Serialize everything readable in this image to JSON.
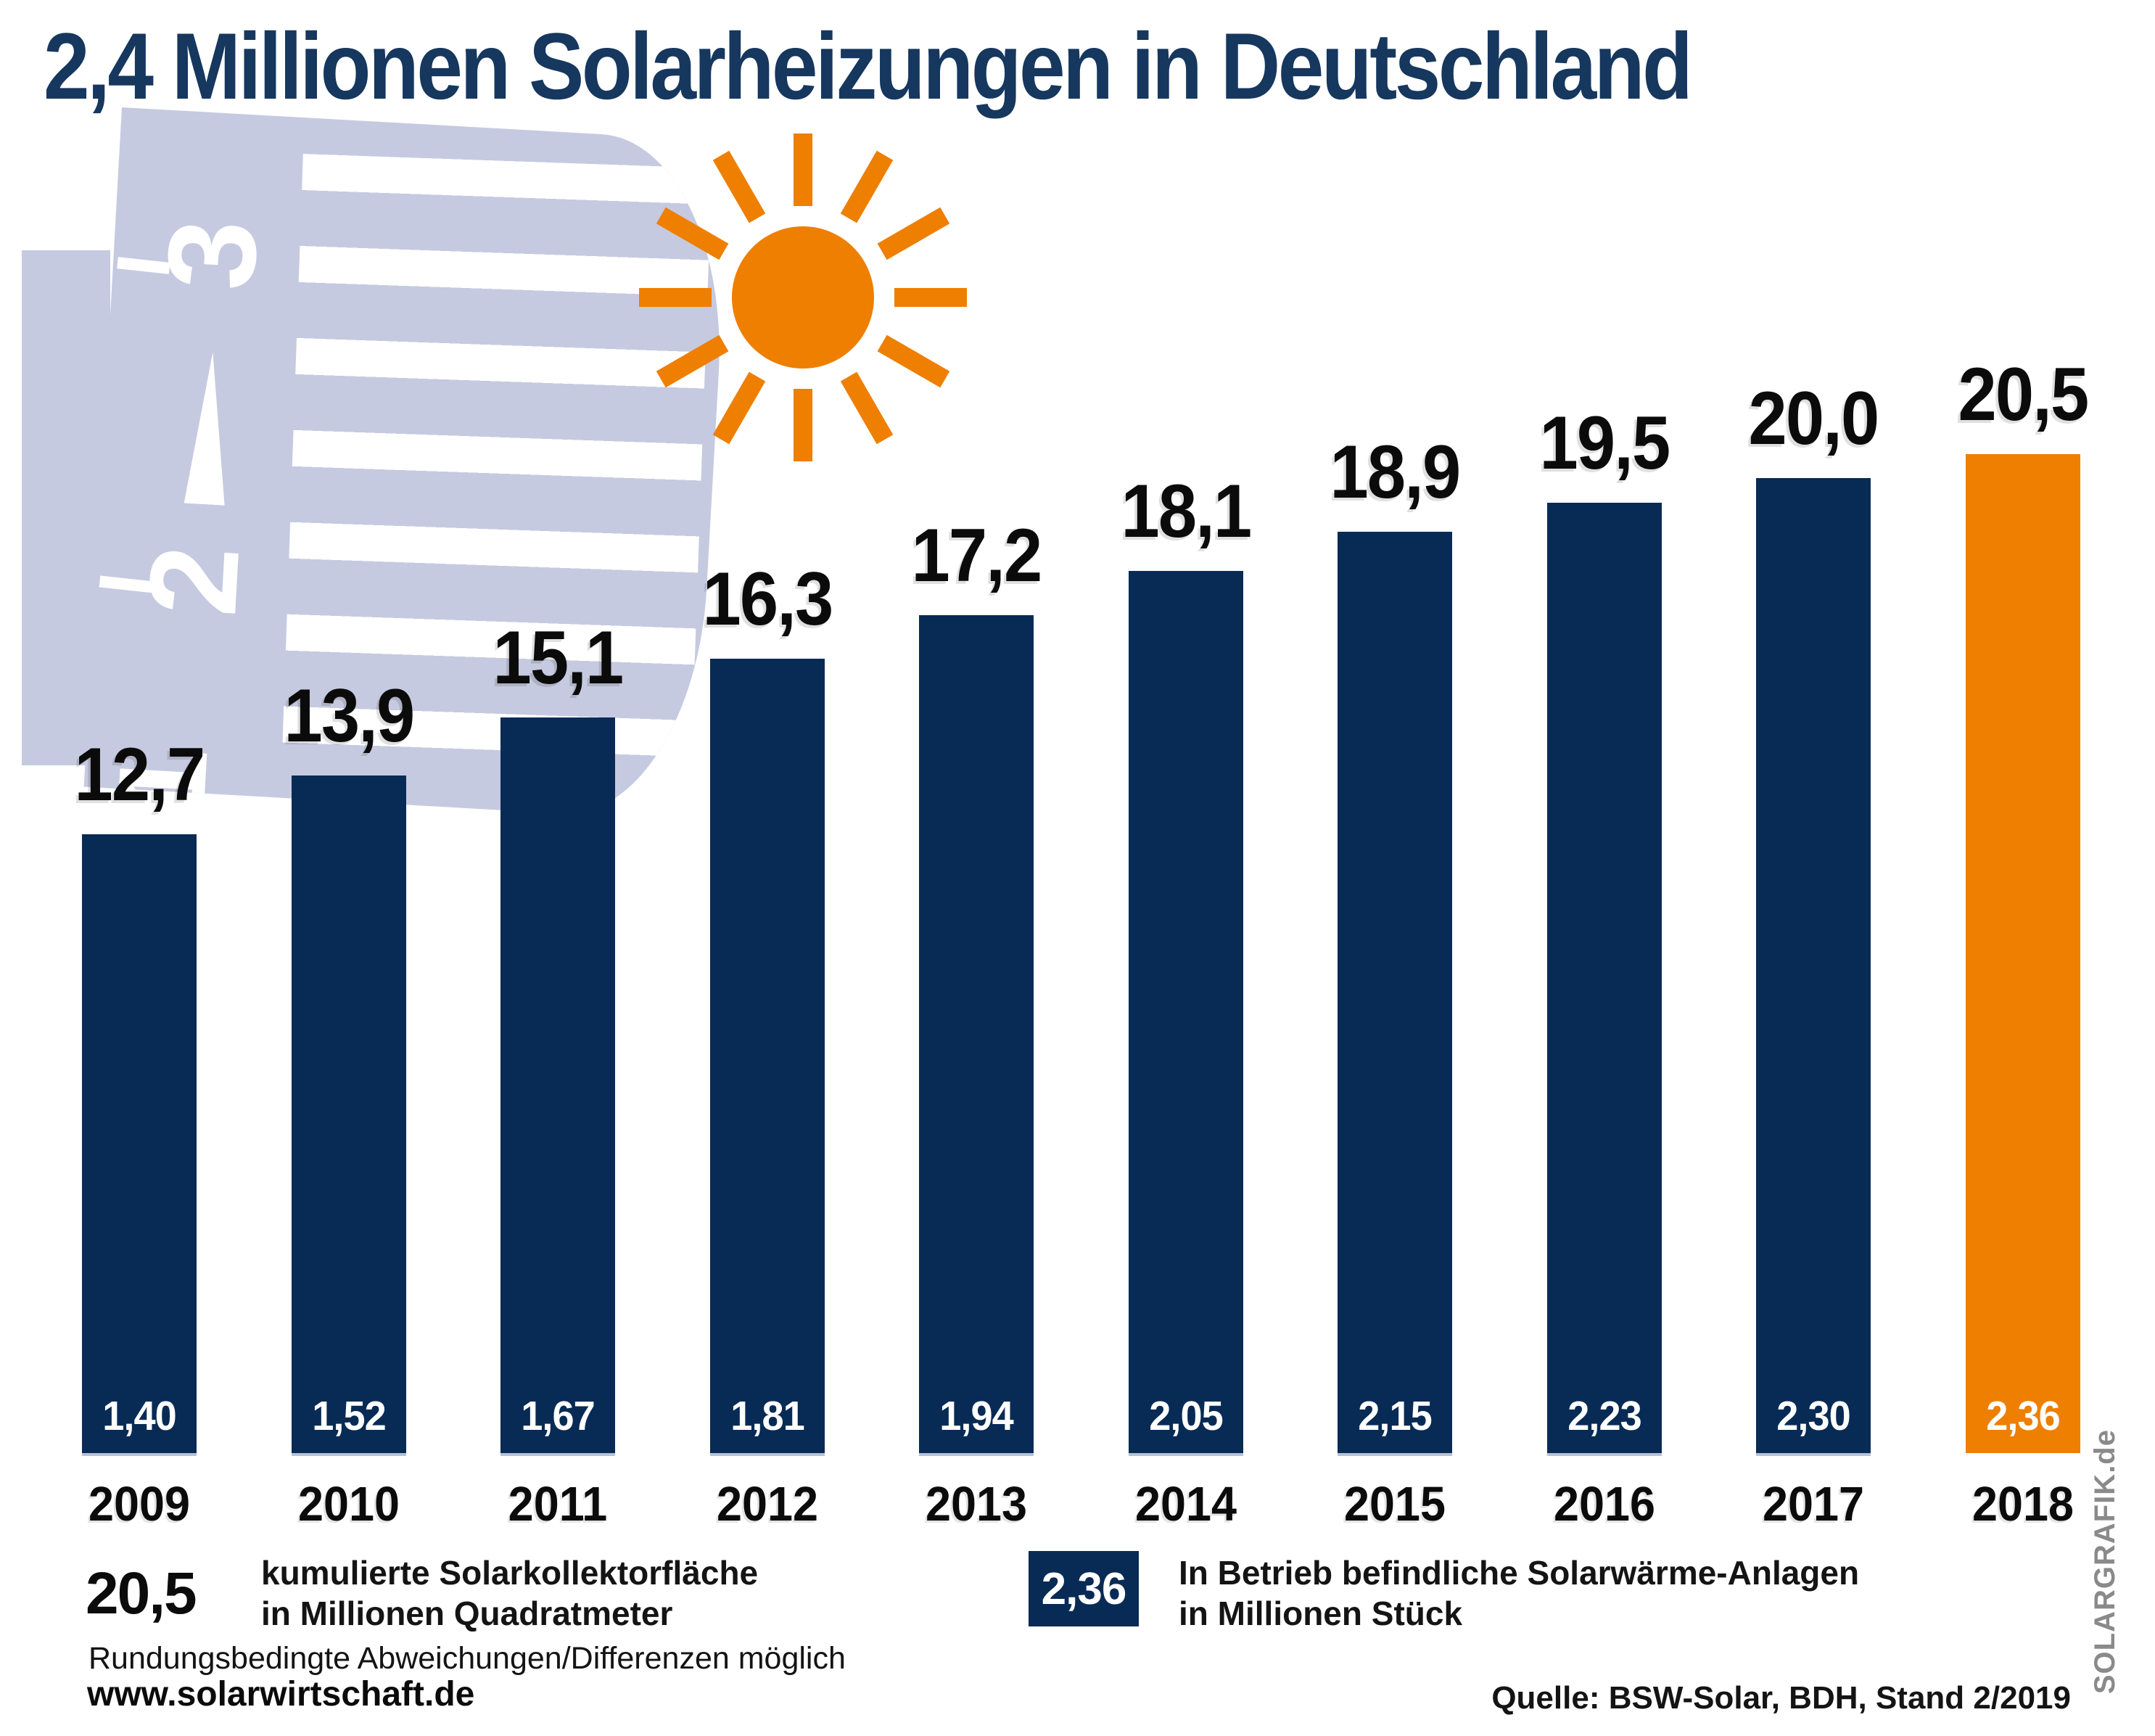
{
  "title": "2,4 Millionen Solarheizungen in Deutschland",
  "chart_data": {
    "type": "bar",
    "categories": [
      "2009",
      "2010",
      "2011",
      "2012",
      "2013",
      "2014",
      "2015",
      "2016",
      "2017",
      "2018"
    ],
    "series": [
      {
        "name": "kumulierte Solarkollektorfläche in Millionen Quadratmeter",
        "values": [
          12.7,
          13.9,
          15.1,
          16.3,
          17.2,
          18.1,
          18.9,
          19.5,
          20.0,
          20.5
        ],
        "labels": [
          "12,7",
          "13,9",
          "15,1",
          "16,3",
          "17,2",
          "18,1",
          "18,9",
          "19,5",
          "20,0",
          "20,5"
        ]
      },
      {
        "name": "In Betrieb befindliche Solarwärme-Anlagen in Millionen Stück",
        "values": [
          1.4,
          1.52,
          1.67,
          1.81,
          1.94,
          2.05,
          2.15,
          2.23,
          2.3,
          2.36
        ],
        "labels": [
          "1,40",
          "1,52",
          "1,67",
          "1,81",
          "1,94",
          "2,05",
          "2,15",
          "2,23",
          "2,30",
          "2,36"
        ]
      }
    ],
    "ylim": [
      0,
      20.5
    ],
    "grid": false,
    "legend_position": "bottom",
    "bar_color_default": "#082B55",
    "bar_color_highlight": "#EE7F00",
    "highlight_index": 9
  },
  "legend": {
    "left_value": "20,5",
    "left_text_line1": "kumulierte Solarkollektorfläche",
    "left_text_line2": "in Millionen Quadratmeter",
    "right_value": "2,36",
    "right_text_line1": "In Betrieb befindliche Solarwärme-Anlagen",
    "right_text_line2": "in Millionen Stück"
  },
  "footer": {
    "note": "Rundungsbedingte Abweichungen/Differenzen möglich",
    "website": "www.solarwirtschaft.de",
    "source": "Quelle: BSW-Solar, BDH, Stand 2/2019",
    "credit": "SOLARGRAFIK.de"
  },
  "decor": {
    "dial_numbers": [
      "3",
      "2",
      "1"
    ]
  },
  "colors": {
    "title": "#16375E",
    "bar_navy": "#082B55",
    "bar_orange": "#EE7F00",
    "thermostat": "#C6CAE0",
    "credit_gray": "#8A8A8A"
  }
}
